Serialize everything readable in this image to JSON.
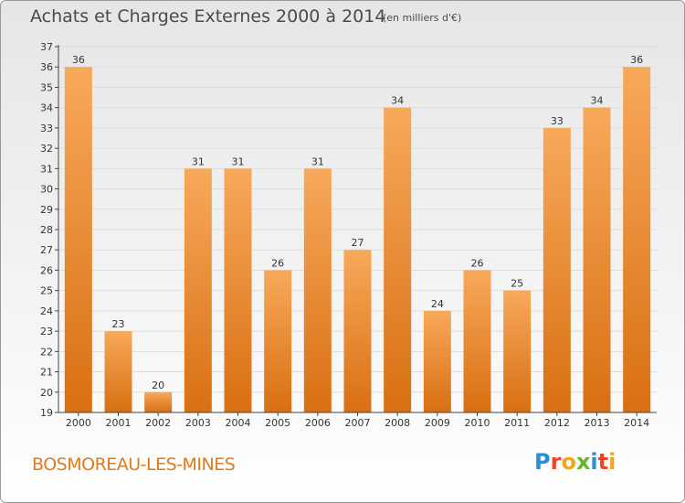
{
  "title": "Achats et Charges Externes 2000 à 2014",
  "subtitle": "(en milliers d'€)",
  "commune": "BOSMOREAU-LES-MINES",
  "logo": {
    "letters": [
      "P",
      "r",
      "o",
      "x",
      "i",
      "t",
      "i"
    ],
    "colors": [
      "#2a8fd0",
      "#e8462a",
      "#f3a51b",
      "#69b330",
      "#2a8fd0",
      "#e8462a",
      "#f3a51b"
    ]
  },
  "colors": {
    "bar_top": "#f7a95a",
    "bar_bottom": "#d96f12",
    "axis": "#444444",
    "grid": "#dddddd"
  },
  "chart_data": {
    "type": "bar",
    "title": "Achats et Charges Externes 2000 à 2014",
    "subtitle": "(en milliers d'€)",
    "categories": [
      "2000",
      "2001",
      "2002",
      "2003",
      "2004",
      "2005",
      "2006",
      "2007",
      "2008",
      "2009",
      "2010",
      "2011",
      "2012",
      "2013",
      "2014"
    ],
    "values": [
      36,
      23,
      20,
      31,
      31,
      26,
      31,
      27,
      34,
      24,
      26,
      25,
      33,
      34,
      36
    ],
    "ylim": [
      19,
      37
    ],
    "yticks": [
      19,
      20,
      21,
      22,
      23,
      24,
      25,
      26,
      27,
      28,
      29,
      30,
      31,
      32,
      33,
      34,
      35,
      36,
      37
    ],
    "grid": true,
    "data_labels": true,
    "xlabel": "",
    "ylabel": ""
  }
}
